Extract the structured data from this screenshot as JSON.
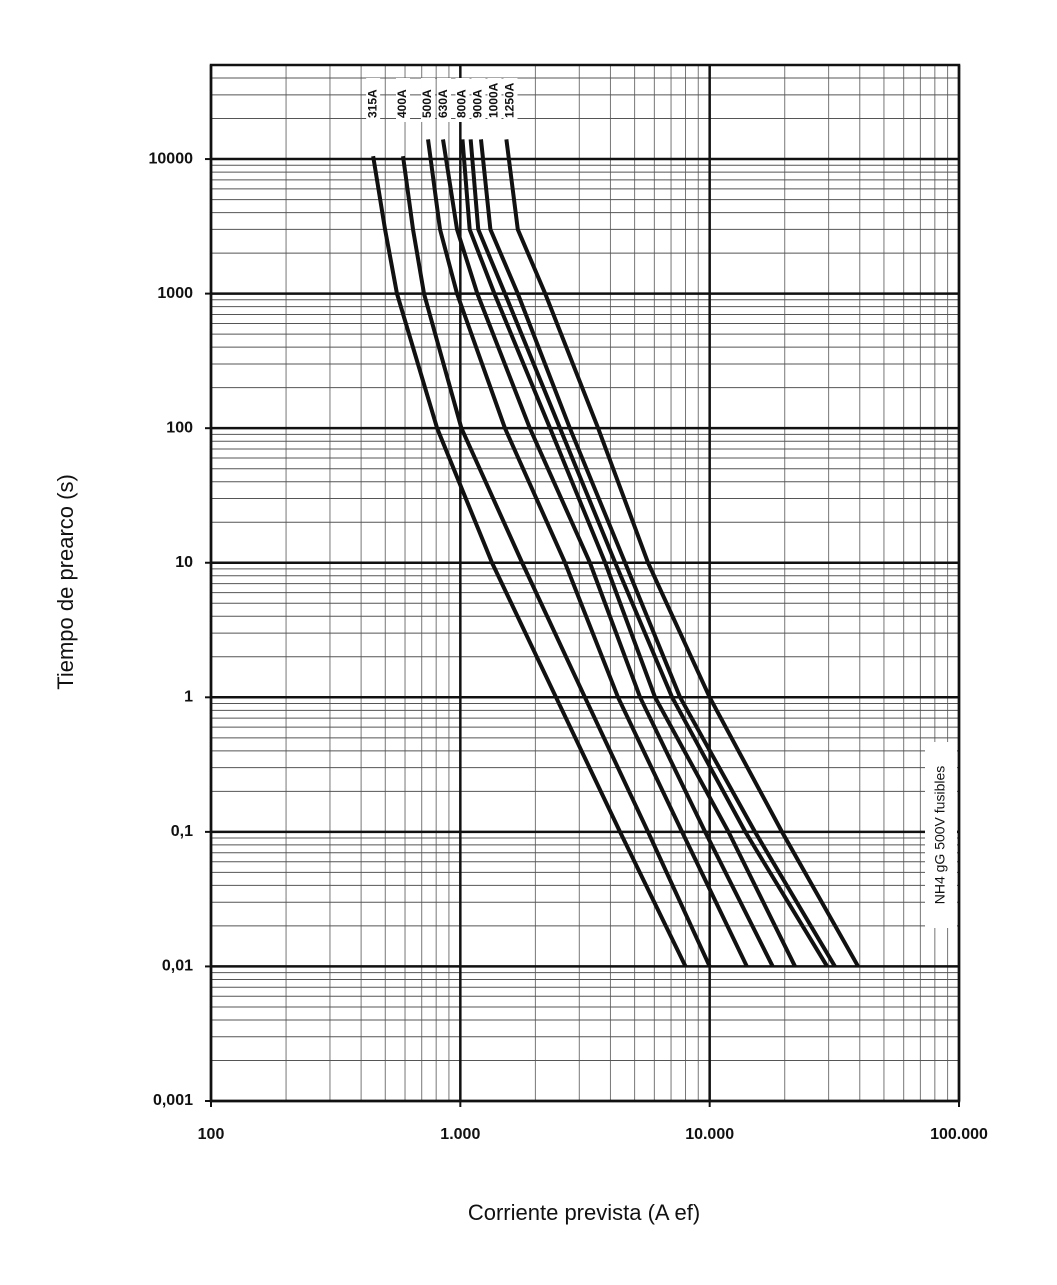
{
  "chart_data": {
    "type": "line",
    "ylabel": "Tiempo de prearco (s)",
    "xlabel": "Corriente prevista (A ef)",
    "annotation": "NH4 gG 500V fusibles",
    "xscale": "log",
    "yscale": "log",
    "grid": true,
    "xlim": [
      100,
      100000
    ],
    "xticks": [
      100,
      {
        "value": 1000,
        "label": "1.000"
      },
      {
        "value": 10000,
        "label": "10.000"
      },
      {
        "value": 100000,
        "label": "100.000"
      }
    ],
    "ylim": [
      0.001,
      50000
    ],
    "yticks": [
      {
        "value": 0.001,
        "label": "0,001"
      },
      {
        "value": 0.01,
        "label": "0,01"
      },
      {
        "value": 0.1,
        "label": "0,1"
      },
      1,
      10,
      100,
      1000,
      10000
    ],
    "series": [
      {
        "name": "315A",
        "color": "#111111",
        "x": [
          447,
          499,
          557,
          807,
          1340,
          2420,
          4370,
          8000
        ],
        "values": [
          10500,
          3000,
          1000,
          100,
          10,
          1,
          0.1,
          0.01
        ]
      },
      {
        "name": "400A",
        "color": "#111111",
        "x": [
          589,
          646,
          715,
          1010,
          1770,
          3160,
          5660,
          10000
        ],
        "values": [
          10500,
          3000,
          1000,
          100,
          10,
          1,
          0.1,
          0.01
        ]
      },
      {
        "name": "500A",
        "color": "#111111",
        "x": [
          742,
          829,
          970,
          1510,
          2630,
          4290,
          7750,
          14100
        ],
        "values": [
          14000,
          3000,
          1000,
          100,
          10,
          1,
          0.1,
          0.01
        ]
      },
      {
        "name": "630A",
        "color": "#111111",
        "x": [
          852,
          970,
          1170,
          1900,
          3310,
          5260,
          9590,
          17900
        ],
        "values": [
          14000,
          3000,
          1000,
          100,
          10,
          1,
          0.1,
          0.01
        ]
      },
      {
        "name": "800A",
        "color": "#111111",
        "x": [
          1020,
          1090,
          1370,
          2290,
          3810,
          6040,
          11900,
          22000
        ],
        "values": [
          14000,
          3000,
          1000,
          100,
          10,
          1,
          0.1,
          0.01
        ]
      },
      {
        "name": "900A",
        "color": "#111111",
        "x": [
          1100,
          1180,
          1510,
          2510,
          4180,
          7070,
          13900,
          29600
        ],
        "values": [
          14000,
          3000,
          1000,
          100,
          10,
          1,
          0.1,
          0.01
        ]
      },
      {
        "name": "1000A",
        "color": "#111111",
        "x": [
          1210,
          1320,
          1700,
          2750,
          4580,
          7610,
          15200,
          31800
        ],
        "values": [
          14000,
          3000,
          1000,
          100,
          10,
          1,
          0.1,
          0.01
        ]
      },
      {
        "name": "1250A",
        "color": "#111111",
        "x": [
          1530,
          1700,
          2190,
          3570,
          5660,
          10000,
          19500,
          39400
        ],
        "values": [
          14000,
          3000,
          1000,
          100,
          10,
          1,
          0.1,
          0.01
        ]
      }
    ]
  }
}
